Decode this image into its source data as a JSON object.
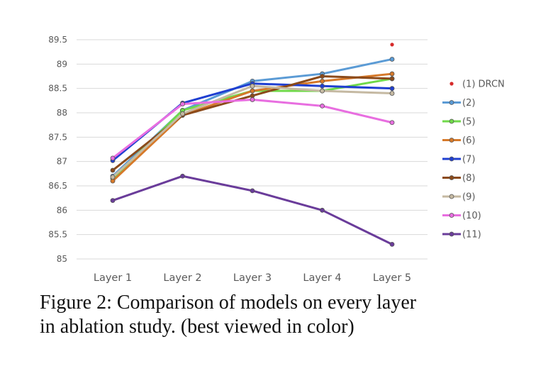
{
  "chart_data": {
    "type": "line",
    "title": "",
    "xlabel": "",
    "ylabel": "",
    "categories": [
      "Layer 1",
      "Layer 2",
      "Layer 3",
      "Layer 4",
      "Layer 5"
    ],
    "ylim": [
      85,
      89.5
    ],
    "yticks": [
      "85",
      "85.5",
      "86",
      "86.5",
      "87",
      "87.5",
      "88",
      "88.5",
      "89",
      "89.5"
    ],
    "grid": true,
    "legend_position": "right",
    "series": [
      {
        "name": "(1) DRCN",
        "color": "#d62a2a",
        "marker_only": true,
        "values": [
          null,
          null,
          null,
          null,
          89.4
        ]
      },
      {
        "name": "(2)",
        "color": "#5b9bd5",
        "values": [
          86.7,
          88.05,
          88.65,
          88.8,
          89.1
        ]
      },
      {
        "name": "(5)",
        "color": "#70d94a",
        "values": [
          86.65,
          88.05,
          88.45,
          88.45,
          88.7
        ]
      },
      {
        "name": "(6)",
        "color": "#d6792a",
        "values": [
          86.6,
          87.95,
          88.45,
          88.65,
          88.8
        ]
      },
      {
        "name": "(7)",
        "color": "#1f3fd1",
        "values": [
          87.02,
          88.2,
          88.6,
          88.55,
          88.5
        ]
      },
      {
        "name": "(8)",
        "color": "#8b4a1a",
        "values": [
          86.82,
          87.95,
          88.35,
          88.75,
          88.7
        ]
      },
      {
        "name": "(9)",
        "color": "#c5b9a2",
        "values": [
          86.68,
          87.98,
          88.55,
          88.45,
          88.4
        ]
      },
      {
        "name": "(10)",
        "color": "#e86ee0",
        "values": [
          87.07,
          88.18,
          88.27,
          88.14,
          87.8
        ]
      },
      {
        "name": "(11)",
        "color": "#6a3c9a",
        "values": [
          86.2,
          86.7,
          86.4,
          86.0,
          85.3
        ]
      }
    ]
  },
  "caption": {
    "line1": "Figure 2: Comparison of models on every layer",
    "line2": "in ablation study. (best viewed in color)"
  }
}
